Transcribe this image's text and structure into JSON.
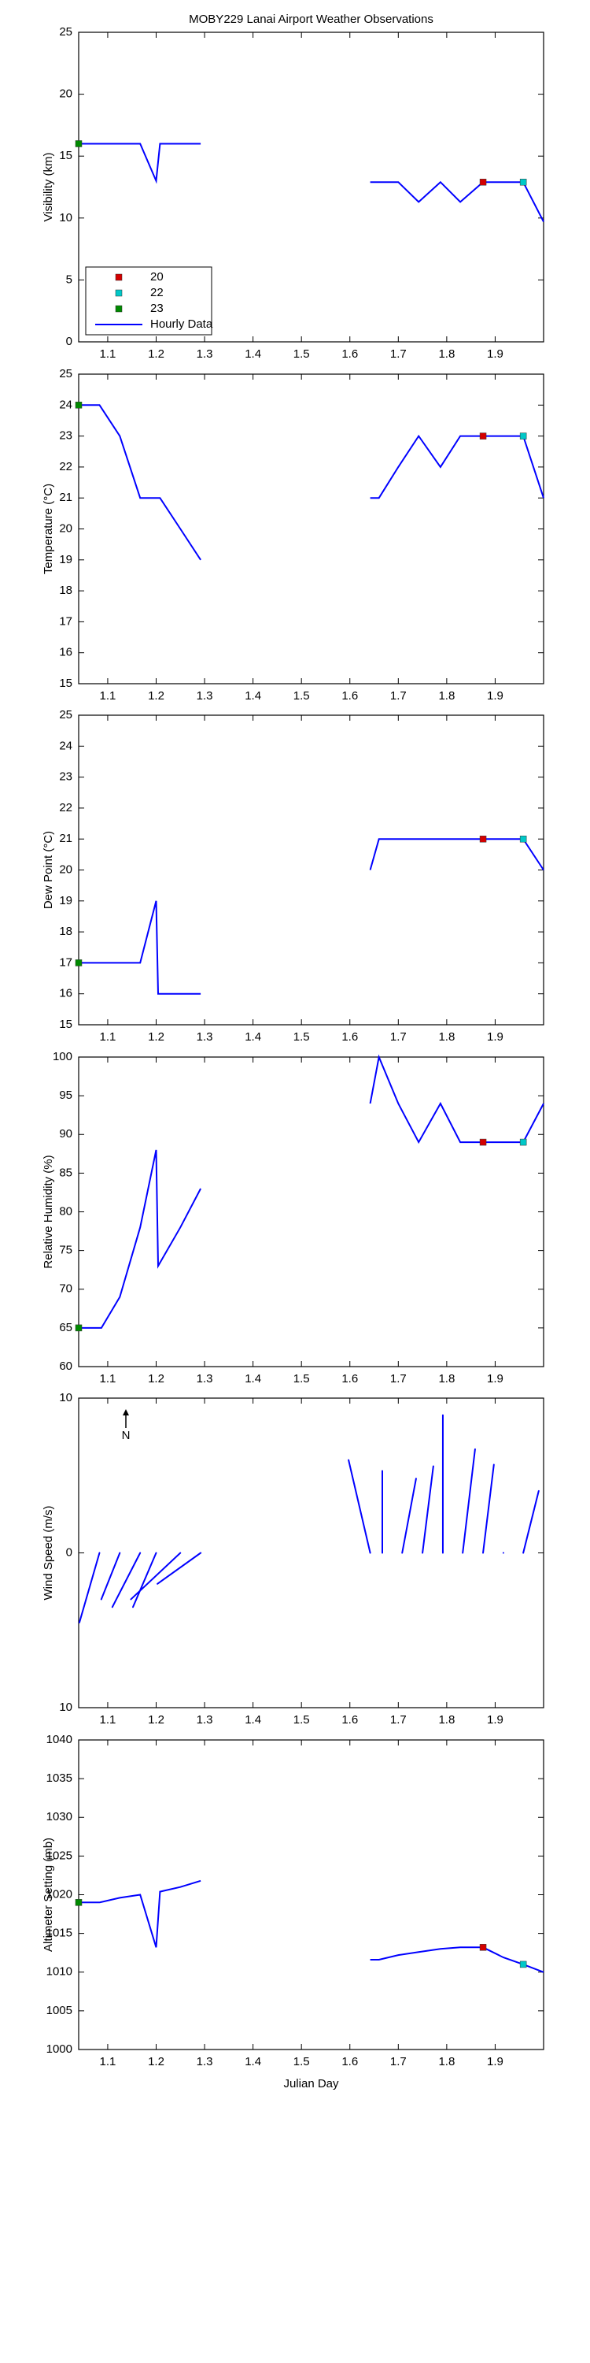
{
  "chart_data": [
    {
      "type": "line",
      "title": "MOBY229 Lanai Airport Weather Observations",
      "ylabel": "Visibility (km)",
      "xlim": [
        1.04,
        2.0
      ],
      "xticks": [
        1.1,
        1.2,
        1.3,
        1.4,
        1.5,
        1.6,
        1.7,
        1.8,
        1.9
      ],
      "ylim": [
        0,
        25
      ],
      "yticks": [
        0,
        5,
        10,
        15,
        20,
        25
      ],
      "legend": "lower left",
      "series": [
        {
          "name": "20",
          "color": "#d40000",
          "marker": "square",
          "x": [
            1.875
          ],
          "values": [
            12.9
          ]
        },
        {
          "name": "22",
          "color": "#00c8c8",
          "marker": "square",
          "x": [
            1.958
          ],
          "values": [
            12.9
          ]
        },
        {
          "name": "23",
          "color": "#008a00",
          "marker": "square",
          "x": [
            1.04
          ],
          "values": [
            16
          ]
        },
        {
          "name": "Hourly Data",
          "color": "#0000ff",
          "marker": "line",
          "x": [
            1.04,
            1.083,
            1.125,
            1.167,
            1.2,
            1.208,
            1.25,
            1.292,
            1.458,
            1.642,
            1.7,
            1.742,
            1.787,
            1.828,
            1.875,
            1.917,
            1.958,
            2.0
          ],
          "values": [
            16,
            16,
            16,
            16,
            13,
            16,
            16,
            16,
            null,
            12.9,
            12.9,
            11.3,
            12.9,
            11.3,
            12.9,
            12.9,
            12.9,
            9.7
          ]
        }
      ]
    },
    {
      "type": "line",
      "ylabel": "Temperature (°C)",
      "xlim": [
        1.04,
        2.0
      ],
      "xticks": [
        1.1,
        1.2,
        1.3,
        1.4,
        1.5,
        1.6,
        1.7,
        1.8,
        1.9
      ],
      "ylim": [
        15,
        25
      ],
      "yticks": [
        15,
        16,
        17,
        18,
        19,
        20,
        21,
        22,
        23,
        24,
        25
      ],
      "series": [
        {
          "color": "#d40000",
          "marker": "square",
          "x": [
            1.875
          ],
          "values": [
            23
          ]
        },
        {
          "color": "#00c8c8",
          "marker": "square",
          "x": [
            1.958
          ],
          "values": [
            23
          ]
        },
        {
          "color": "#008a00",
          "marker": "square",
          "x": [
            1.04
          ],
          "values": [
            24
          ]
        },
        {
          "color": "#0000ff",
          "marker": "line",
          "x": [
            1.04,
            1.083,
            1.125,
            1.167,
            1.2,
            1.208,
            1.25,
            1.292,
            1.458,
            1.642,
            1.66,
            1.7,
            1.742,
            1.787,
            1.828,
            1.875,
            1.917,
            1.958,
            2.0
          ],
          "values": [
            24,
            24,
            23,
            21,
            21,
            21,
            20,
            19,
            null,
            21,
            21,
            22,
            23,
            22,
            23,
            23,
            23,
            23,
            21
          ]
        }
      ]
    },
    {
      "type": "line",
      "ylabel": "Dew Point (°C)",
      "xlim": [
        1.04,
        2.0
      ],
      "xticks": [
        1.1,
        1.2,
        1.3,
        1.4,
        1.5,
        1.6,
        1.7,
        1.8,
        1.9
      ],
      "ylim": [
        15,
        25
      ],
      "yticks": [
        15,
        16,
        17,
        18,
        19,
        20,
        21,
        22,
        23,
        24,
        25
      ],
      "series": [
        {
          "color": "#d40000",
          "marker": "square",
          "x": [
            1.875
          ],
          "values": [
            21
          ]
        },
        {
          "color": "#00c8c8",
          "marker": "square",
          "x": [
            1.958
          ],
          "values": [
            21
          ]
        },
        {
          "color": "#008a00",
          "marker": "square",
          "x": [
            1.04
          ],
          "values": [
            17
          ]
        },
        {
          "color": "#0000ff",
          "marker": "line",
          "x": [
            1.04,
            1.083,
            1.125,
            1.167,
            1.2,
            1.204,
            1.25,
            1.292,
            1.458,
            1.642,
            1.66,
            1.7,
            1.742,
            1.787,
            1.828,
            1.875,
            1.917,
            1.958,
            2.0
          ],
          "values": [
            17,
            17,
            17,
            17,
            19,
            16,
            16,
            16,
            null,
            20,
            21,
            21,
            21,
            21,
            21,
            21,
            21,
            21,
            20
          ]
        }
      ]
    },
    {
      "type": "line",
      "ylabel": "Relative Humidity (%)",
      "xlim": [
        1.04,
        2.0
      ],
      "xticks": [
        1.1,
        1.2,
        1.3,
        1.4,
        1.5,
        1.6,
        1.7,
        1.8,
        1.9
      ],
      "ylim": [
        60,
        100
      ],
      "yticks": [
        60,
        65,
        70,
        75,
        80,
        85,
        90,
        95,
        100
      ],
      "series": [
        {
          "color": "#d40000",
          "marker": "square",
          "x": [
            1.875
          ],
          "values": [
            89
          ]
        },
        {
          "color": "#00c8c8",
          "marker": "square",
          "x": [
            1.958
          ],
          "values": [
            89
          ]
        },
        {
          "color": "#008a00",
          "marker": "square",
          "x": [
            1.04
          ],
          "values": [
            65
          ]
        },
        {
          "color": "#0000ff",
          "marker": "line",
          "x": [
            1.04,
            1.087,
            1.125,
            1.167,
            1.2,
            1.204,
            1.25,
            1.292,
            1.458,
            1.642,
            1.66,
            1.7,
            1.742,
            1.787,
            1.828,
            1.875,
            1.917,
            1.958,
            2.0
          ],
          "values": [
            65,
            65,
            69,
            78,
            88,
            73,
            78,
            83,
            null,
            94,
            100,
            94,
            89,
            94,
            89,
            89,
            89,
            89,
            94
          ]
        }
      ]
    },
    {
      "type": "quiver",
      "ylabel": "Wind Speed (m/s)",
      "annotation": "N",
      "xlim": [
        1.04,
        2.0
      ],
      "xticks": [
        1.1,
        1.2,
        1.3,
        1.4,
        1.5,
        1.6,
        1.7,
        1.8,
        1.9
      ],
      "ylim": [
        -10,
        10
      ],
      "yticks": [
        {
          "value": -10,
          "label": "10"
        },
        0,
        10
      ],
      "color": "#0000ff",
      "x": [
        1.083,
        1.125,
        1.167,
        1.2,
        1.25,
        1.292,
        1.642,
        1.667,
        1.708,
        1.75,
        1.792,
        1.833,
        1.875,
        1.917,
        1.958
      ],
      "u": [
        -1.3,
        -1.2,
        -1.8,
        -1.5,
        -3.2,
        -2.8,
        -1.4,
        0,
        0.9,
        0.7,
        0,
        0.8,
        0.7,
        0,
        1.0
      ],
      "v": [
        -4.5,
        -3.0,
        -3.5,
        -3.5,
        -3.0,
        -2.0,
        6.0,
        5.3,
        4.8,
        5.6,
        8.9,
        6.7,
        5.7,
        0,
        4.0
      ]
    },
    {
      "type": "line",
      "ylabel": "Altimeter Setting (mb)",
      "xlabel": "Julian Day",
      "xlim": [
        1.04,
        2.0
      ],
      "xticks": [
        1.1,
        1.2,
        1.3,
        1.4,
        1.5,
        1.6,
        1.7,
        1.8,
        1.9
      ],
      "ylim": [
        1000,
        1040
      ],
      "yticks": [
        1000,
        1005,
        1010,
        1015,
        1020,
        1025,
        1030,
        1035,
        1040
      ],
      "series": [
        {
          "color": "#d40000",
          "marker": "square",
          "x": [
            1.875
          ],
          "values": [
            1013.2
          ]
        },
        {
          "color": "#00c8c8",
          "marker": "square",
          "x": [
            1.958
          ],
          "values": [
            1011
          ]
        },
        {
          "color": "#008a00",
          "marker": "square",
          "x": [
            1.04
          ],
          "values": [
            1019
          ]
        },
        {
          "color": "#0000ff",
          "marker": "line",
          "x": [
            1.04,
            1.083,
            1.125,
            1.167,
            1.2,
            1.208,
            1.25,
            1.292,
            1.458,
            1.642,
            1.66,
            1.7,
            1.742,
            1.787,
            1.828,
            1.875,
            1.917,
            1.958,
            2.0
          ],
          "values": [
            1019,
            1019,
            1019.6,
            1020,
            1013.2,
            1020.4,
            1021,
            1021.8,
            null,
            1011.6,
            1011.6,
            1012.2,
            1012.6,
            1013,
            1013.2,
            1013.2,
            1011.9,
            1011,
            1010
          ]
        }
      ]
    }
  ]
}
